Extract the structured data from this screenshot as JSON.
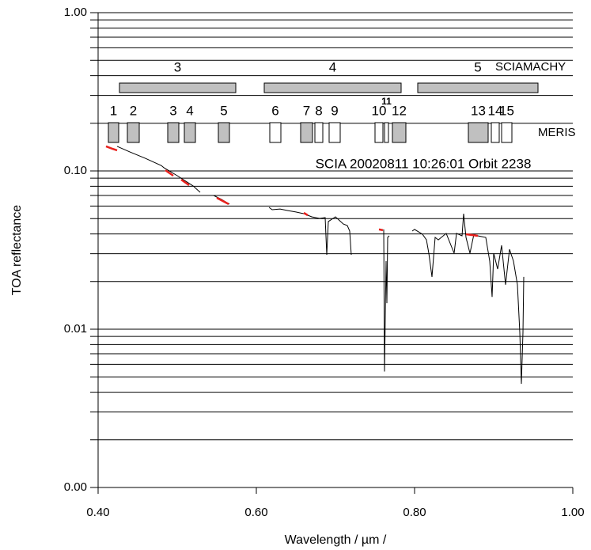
{
  "chart_data": {
    "type": "line",
    "xlabel": "Wavelength / µm /",
    "ylabel": "TOA reflectance",
    "annotation": "SCIA 20020811 10:26:01 Orbit 2238",
    "log_y": true,
    "minor_grid": true,
    "xlim": [
      0.4,
      1.0
    ],
    "ylim": [
      0.001,
      1
    ],
    "xticks": [
      {
        "value": 0.4,
        "label": "0.40"
      },
      {
        "value": 0.6,
        "label": "0.60"
      },
      {
        "value": 0.8,
        "label": "0.80"
      },
      {
        "value": 1.0,
        "label": "1.00"
      }
    ],
    "yticks": [
      {
        "value": 0.001,
        "label": "0.00"
      },
      {
        "value": 0.01,
        "label": "0.01"
      },
      {
        "value": 0.1,
        "label": "0.10"
      },
      {
        "value": 1,
        "label": "1.00"
      }
    ],
    "band_fill": "#c0c0c0",
    "sciamachy": {
      "label": "SCIAMACHY",
      "bands": [
        {
          "label": "3",
          "range": [
            0.427,
            0.574
          ]
        },
        {
          "label": "4",
          "range": [
            0.61,
            0.783
          ]
        },
        {
          "label": "5",
          "range": [
            0.804,
            0.956
          ]
        }
      ]
    },
    "meris": {
      "label": "MERIS",
      "bands": [
        {
          "label": "1",
          "range": [
            0.413,
            0.426
          ],
          "filled": true
        },
        {
          "label": "2",
          "range": [
            0.437,
            0.452
          ],
          "filled": true
        },
        {
          "label": "3",
          "range": [
            0.488,
            0.502
          ],
          "filled": true
        },
        {
          "label": "4",
          "range": [
            0.509,
            0.523
          ],
          "filled": true
        },
        {
          "label": "5",
          "range": [
            0.552,
            0.566
          ],
          "filled": true
        },
        {
          "label": "6",
          "range": [
            0.617,
            0.631
          ],
          "filled": false
        },
        {
          "label": "7",
          "range": [
            0.656,
            0.671
          ],
          "filled": true
        },
        {
          "label": "8",
          "range": [
            0.674,
            0.684
          ],
          "filled": false
        },
        {
          "label": "9",
          "range": [
            0.692,
            0.706
          ],
          "filled": false
        },
        {
          "label": "10",
          "range": [
            0.75,
            0.76
          ],
          "filled": false
        },
        {
          "label": "11",
          "range": [
            0.762,
            0.767
          ],
          "filled": false
        },
        {
          "label": "12",
          "range": [
            0.772,
            0.789
          ],
          "filled": true
        },
        {
          "label": "13",
          "range": [
            0.868,
            0.893
          ],
          "filled": true
        },
        {
          "label": "14",
          "range": [
            0.897,
            0.907
          ],
          "filled": false
        },
        {
          "label": "15",
          "range": [
            0.91,
            0.923
          ],
          "filled": false
        }
      ]
    },
    "series": [
      {
        "color": "#000000",
        "x": [
          0.424,
          0.44,
          0.46,
          0.48,
          0.483,
          0.5,
          0.52,
          0.529,
          null,
          0.546,
          0.556,
          0.566,
          null,
          0.616,
          0.62,
          0.63,
          0.64,
          0.65,
          0.66,
          0.67,
          0.68,
          0.687,
          0.689,
          0.691,
          0.7,
          0.71,
          0.715,
          0.718,
          0.72,
          null,
          0.761,
          0.762,
          0.764,
          0.765,
          0.766,
          0.768,
          null,
          0.797,
          0.8,
          0.81,
          0.815,
          0.818,
          0.822,
          0.826,
          0.83,
          0.84,
          0.85,
          0.853,
          0.86,
          0.862,
          0.865,
          0.87,
          0.875,
          0.88,
          0.89,
          0.895,
          0.898,
          0.9,
          0.905,
          0.91,
          0.915,
          0.92,
          0.925,
          0.93,
          0.933,
          0.935,
          0.937,
          0.938
        ],
        "values": [
          0.143,
          0.132,
          0.12,
          0.108,
          0.105,
          0.0933,
          0.0804,
          0.0733,
          null,
          0.07,
          0.0661,
          0.0617,
          null,
          0.0589,
          0.0569,
          0.0575,
          0.0562,
          0.055,
          0.0537,
          0.0513,
          0.0501,
          0.0507,
          0.0295,
          0.0479,
          0.0513,
          0.0462,
          0.0452,
          0.0417,
          0.0295,
          null,
          0.0427,
          0.0054,
          0.0269,
          0.0146,
          0.038,
          0.0389,
          null,
          0.0417,
          0.0427,
          0.0398,
          0.0367,
          0.0302,
          0.0214,
          0.038,
          0.0367,
          0.0403,
          0.0302,
          0.0403,
          0.0389,
          0.0537,
          0.038,
          0.0302,
          0.0398,
          0.0389,
          0.038,
          0.0269,
          0.016,
          0.0302,
          0.024,
          0.0339,
          0.0191,
          0.032,
          0.0269,
          0.0191,
          0.00955,
          0.00452,
          0.00955,
          0.0214
        ]
      },
      {
        "color": "#e8201c",
        "x": [
          0.41,
          0.418,
          0.424,
          null,
          0.485,
          0.495,
          null,
          0.505,
          0.515,
          null,
          0.55,
          0.565,
          null,
          0.66,
          0.665,
          null,
          0.755,
          0.76,
          null,
          0.865,
          0.88
        ],
        "values": [
          0.143,
          0.138,
          0.135,
          null,
          0.101,
          0.0933,
          null,
          0.0881,
          0.0813,
          null,
          0.0676,
          0.0617,
          null,
          0.0543,
          0.0525,
          null,
          0.0427,
          0.0422,
          null,
          0.0398,
          0.0389
        ]
      }
    ]
  }
}
